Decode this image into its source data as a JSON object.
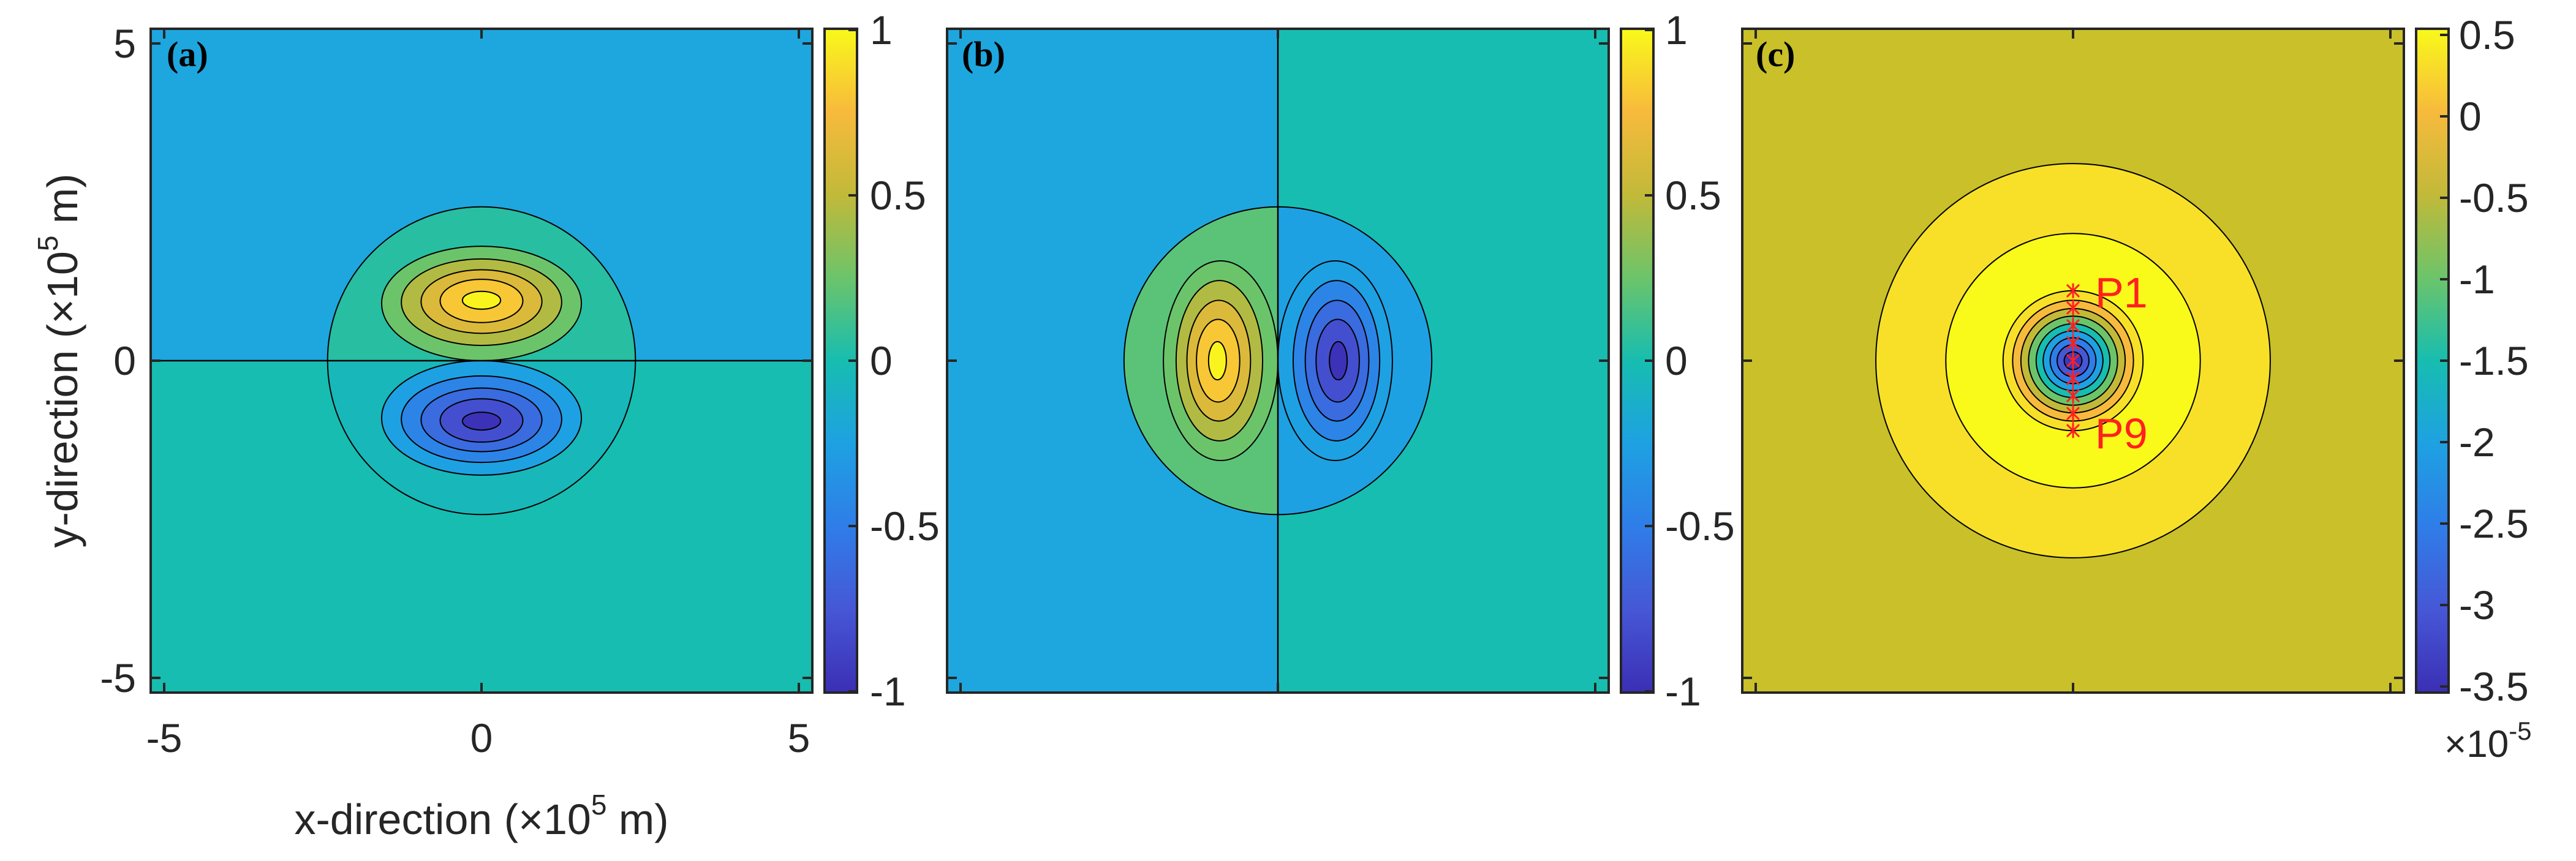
{
  "chart_data": [
    {
      "type": "contour",
      "panel_label": "(a)",
      "x_range": [
        -5.2,
        5.2
      ],
      "y_range": [
        -5.2,
        5.2
      ],
      "xticks": [
        "-5",
        "0",
        "5"
      ],
      "yticks": [
        "5",
        "0",
        "-5"
      ],
      "xlabel": "x-direction (",
      "xlabel_unit_base": "10",
      "xlabel_unit_exp": "5",
      "xlabel_unit_tail": " m)",
      "ylabel": "y-direction (",
      "ylabel_unit_base": "10",
      "ylabel_unit_exp": "5",
      "ylabel_unit_tail": " m)",
      "field": "antisymmetric in y: positive lobe above y=0 (max ~1 at y≈0.95), negative lobe below (min ~-1 at y≈-0.95), support radius ~2.4",
      "regions": {
        "outside_upper": -0.3,
        "outside_lower": 0.0
      },
      "colorbar": {
        "range": [
          -1,
          1
        ],
        "ticks": [
          "1",
          "0.5",
          "0",
          "-0.5",
          "-1"
        ]
      }
    },
    {
      "type": "contour",
      "panel_label": "(b)",
      "x_range": [
        -5.2,
        5.2
      ],
      "y_range": [
        -5.2,
        5.2
      ],
      "field": "antisymmetric in x: positive lobe left of x=0 (max ~1 at x≈-0.95), negative lobe right (min ~-1 at x≈0.95), support radius ~2.4",
      "regions": {
        "outside_left": -0.3,
        "outside_right": 0.0
      },
      "colorbar": {
        "range": [
          -1,
          1
        ],
        "ticks": [
          "1",
          "0.5",
          "0",
          "-0.5",
          "-1"
        ]
      }
    },
    {
      "type": "contour",
      "panel_label": "(c)",
      "x_range": [
        -5.2,
        5.2
      ],
      "y_range": [
        -5.2,
        5.2
      ],
      "field": "radially symmetric: background ~0.1, ring ~0.3 (r 1.7–3.1), ring ~0.5 (r 1.1–1.7), decreasing to ~-3.5 at centre",
      "rings": [
        {
          "r": 3.1,
          "value": 0.3
        },
        {
          "r": 2.0,
          "value": 0.5
        },
        {
          "r": 1.1,
          "value": 0.3
        },
        {
          "r": 0.95,
          "value": 0.0
        },
        {
          "r": 0.82,
          "value": -0.5
        },
        {
          "r": 0.7,
          "value": -1.0
        },
        {
          "r": 0.58,
          "value": -1.5
        },
        {
          "r": 0.47,
          "value": -2.0
        },
        {
          "r": 0.36,
          "value": -2.5
        },
        {
          "r": 0.25,
          "value": -3.0
        },
        {
          "r": 0.14,
          "value": -3.4
        }
      ],
      "background_value": 0.1,
      "probe_points": {
        "y_values": [
          1.1,
          0.83,
          0.55,
          0.28,
          0.0,
          -0.28,
          -0.55,
          -0.83,
          -1.1
        ],
        "labels": [
          "P1",
          "P9"
        ]
      },
      "colorbar": {
        "range": [
          -3.5,
          0.5
        ],
        "ticks": [
          "0.5",
          "0",
          "-0.5",
          "-1",
          "-1.5",
          "-2",
          "-2.5",
          "-3",
          "-3.5"
        ],
        "multiplier_base": "10",
        "multiplier_exp": "-5"
      }
    }
  ],
  "colors": {
    "parula_m1": "#3b2fb4",
    "parula_m075": "#4657d6",
    "parula_m05": "#2f7de8",
    "parula_m03": "#1eaadf",
    "parula_0": "#17bdb0",
    "parula_025": "#6cc46a",
    "parula_05": "#c2b939",
    "parula_075": "#f7ba3c",
    "parula_1": "#f9f91a",
    "olive": "#c9c02a",
    "probe": "#ff2020"
  }
}
